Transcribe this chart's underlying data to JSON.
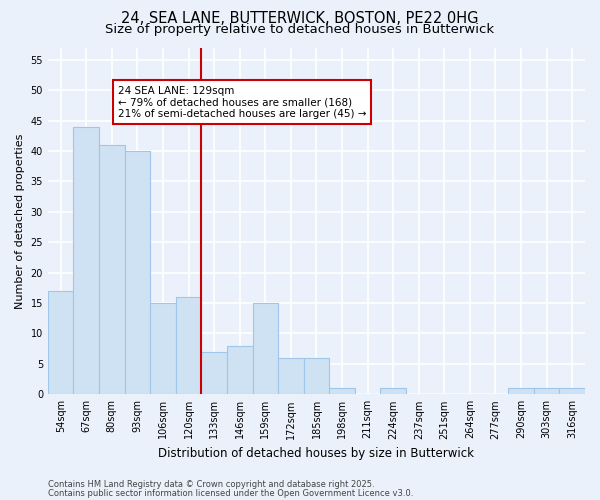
{
  "title": "24, SEA LANE, BUTTERWICK, BOSTON, PE22 0HG",
  "subtitle": "Size of property relative to detached houses in Butterwick",
  "xlabel": "Distribution of detached houses by size in Butterwick",
  "ylabel": "Number of detached properties",
  "categories": [
    "54sqm",
    "67sqm",
    "80sqm",
    "93sqm",
    "106sqm",
    "120sqm",
    "133sqm",
    "146sqm",
    "159sqm",
    "172sqm",
    "185sqm",
    "198sqm",
    "211sqm",
    "224sqm",
    "237sqm",
    "251sqm",
    "264sqm",
    "277sqm",
    "290sqm",
    "303sqm",
    "316sqm"
  ],
  "values": [
    17,
    44,
    41,
    40,
    15,
    16,
    7,
    8,
    15,
    6,
    6,
    1,
    0,
    1,
    0,
    0,
    0,
    0,
    1,
    1,
    1
  ],
  "bar_color": "#cfe2f3",
  "bar_edge_color": "#9fc5e8",
  "background_color": "#eaf1fb",
  "grid_color": "#ffffff",
  "vline_x_index": 6,
  "vline_color": "#cc0000",
  "annotation_line1": "24 SEA LANE: 129sqm",
  "annotation_line2": "← 79% of detached houses are smaller (168)",
  "annotation_line3": "21% of semi-detached houses are larger (45) →",
  "annotation_box_color": "#ffffff",
  "annotation_box_edge": "#cc0000",
  "ylim": [
    0,
    57
  ],
  "yticks": [
    0,
    5,
    10,
    15,
    20,
    25,
    30,
    35,
    40,
    45,
    50,
    55
  ],
  "footer1": "Contains HM Land Registry data © Crown copyright and database right 2025.",
  "footer2": "Contains public sector information licensed under the Open Government Licence v3.0.",
  "title_fontsize": 10.5,
  "subtitle_fontsize": 9.5,
  "tick_fontsize": 7,
  "ylabel_fontsize": 8,
  "xlabel_fontsize": 8.5,
  "annotation_fontsize": 7.5,
  "footer_fontsize": 6
}
